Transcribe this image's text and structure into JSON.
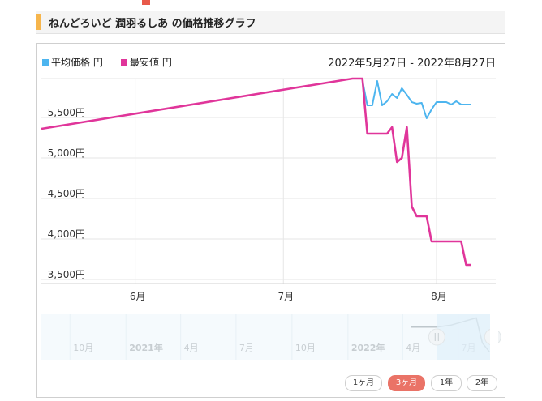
{
  "page": {
    "title": "ねんどろいど 潤羽るしあ の価格推移グラフ"
  },
  "chart_data": {
    "type": "line",
    "date_range": "2022年5月27日 - 2022年8月27日",
    "legend": [
      {
        "name": "平均価格 円",
        "color": "#4db5ef"
      },
      {
        "name": "最安値 円",
        "color": "#e0359a"
      }
    ],
    "y_ticks": [
      "5,500円",
      "5,000円",
      "4,500円",
      "4,000円",
      "3,500円"
    ],
    "y_tick_values": [
      5500,
      5000,
      4500,
      4000,
      3500
    ],
    "ylim": [
      3450,
      5980
    ],
    "x_ticks": [
      "6月",
      "7月",
      "8月"
    ],
    "x_tick_dates": [
      "2022-06-15",
      "2022-07-15",
      "2022-08-15"
    ],
    "xlim": [
      "2022-05-27",
      "2022-08-27"
    ],
    "series": [
      {
        "name": "平均価格 円",
        "color": "#4db5ef",
        "points": [
          [
            "2022-07-31",
            5960
          ],
          [
            "2022-08-01",
            5650
          ],
          [
            "2022-08-02",
            5650
          ],
          [
            "2022-08-03",
            5950
          ],
          [
            "2022-08-04",
            5650
          ],
          [
            "2022-08-05",
            5700
          ],
          [
            "2022-08-06",
            5790
          ],
          [
            "2022-08-07",
            5740
          ],
          [
            "2022-08-08",
            5860
          ],
          [
            "2022-08-09",
            5780
          ],
          [
            "2022-08-10",
            5690
          ],
          [
            "2022-08-11",
            5670
          ],
          [
            "2022-08-12",
            5680
          ],
          [
            "2022-08-13",
            5490
          ],
          [
            "2022-08-14",
            5600
          ],
          [
            "2022-08-15",
            5690
          ],
          [
            "2022-08-17",
            5690
          ],
          [
            "2022-08-18",
            5660
          ],
          [
            "2022-08-19",
            5700
          ],
          [
            "2022-08-20",
            5660
          ],
          [
            "2022-08-21",
            5660
          ],
          [
            "2022-08-22",
            5660
          ]
        ]
      },
      {
        "name": "最安値 円",
        "color": "#e0359a",
        "points": [
          [
            "2022-05-27",
            5360
          ],
          [
            "2022-07-29",
            5980
          ],
          [
            "2022-07-31",
            5980
          ],
          [
            "2022-08-01",
            5300
          ],
          [
            "2022-08-05",
            5300
          ],
          [
            "2022-08-06",
            5380
          ],
          [
            "2022-08-07",
            4950
          ],
          [
            "2022-08-08",
            5000
          ],
          [
            "2022-08-09",
            5380
          ],
          [
            "2022-08-10",
            4400
          ],
          [
            "2022-08-11",
            4280
          ],
          [
            "2022-08-13",
            4280
          ],
          [
            "2022-08-14",
            3970
          ],
          [
            "2022-08-20",
            3970
          ],
          [
            "2022-08-21",
            3680
          ],
          [
            "2022-08-22",
            3680
          ]
        ]
      }
    ]
  },
  "navigator": {
    "labels": [
      "10月",
      "2021年",
      "4月",
      "7月",
      "10月",
      "2022年",
      "4月",
      "7月"
    ],
    "label_dates": [
      "2020-10-01",
      "2021-01-01",
      "2021-04-01",
      "2021-07-01",
      "2021-10-01",
      "2022-01-01",
      "2022-04-01",
      "2022-07-01"
    ],
    "range": [
      "2020-08-15",
      "2022-09-01"
    ],
    "handle_icon": "handle-grip-icon"
  },
  "range_buttons": [
    {
      "label": "1ヶ月",
      "active": false
    },
    {
      "label": "3ヶ月",
      "active": true
    },
    {
      "label": "1年",
      "active": false
    },
    {
      "label": "2年",
      "active": false
    }
  ]
}
